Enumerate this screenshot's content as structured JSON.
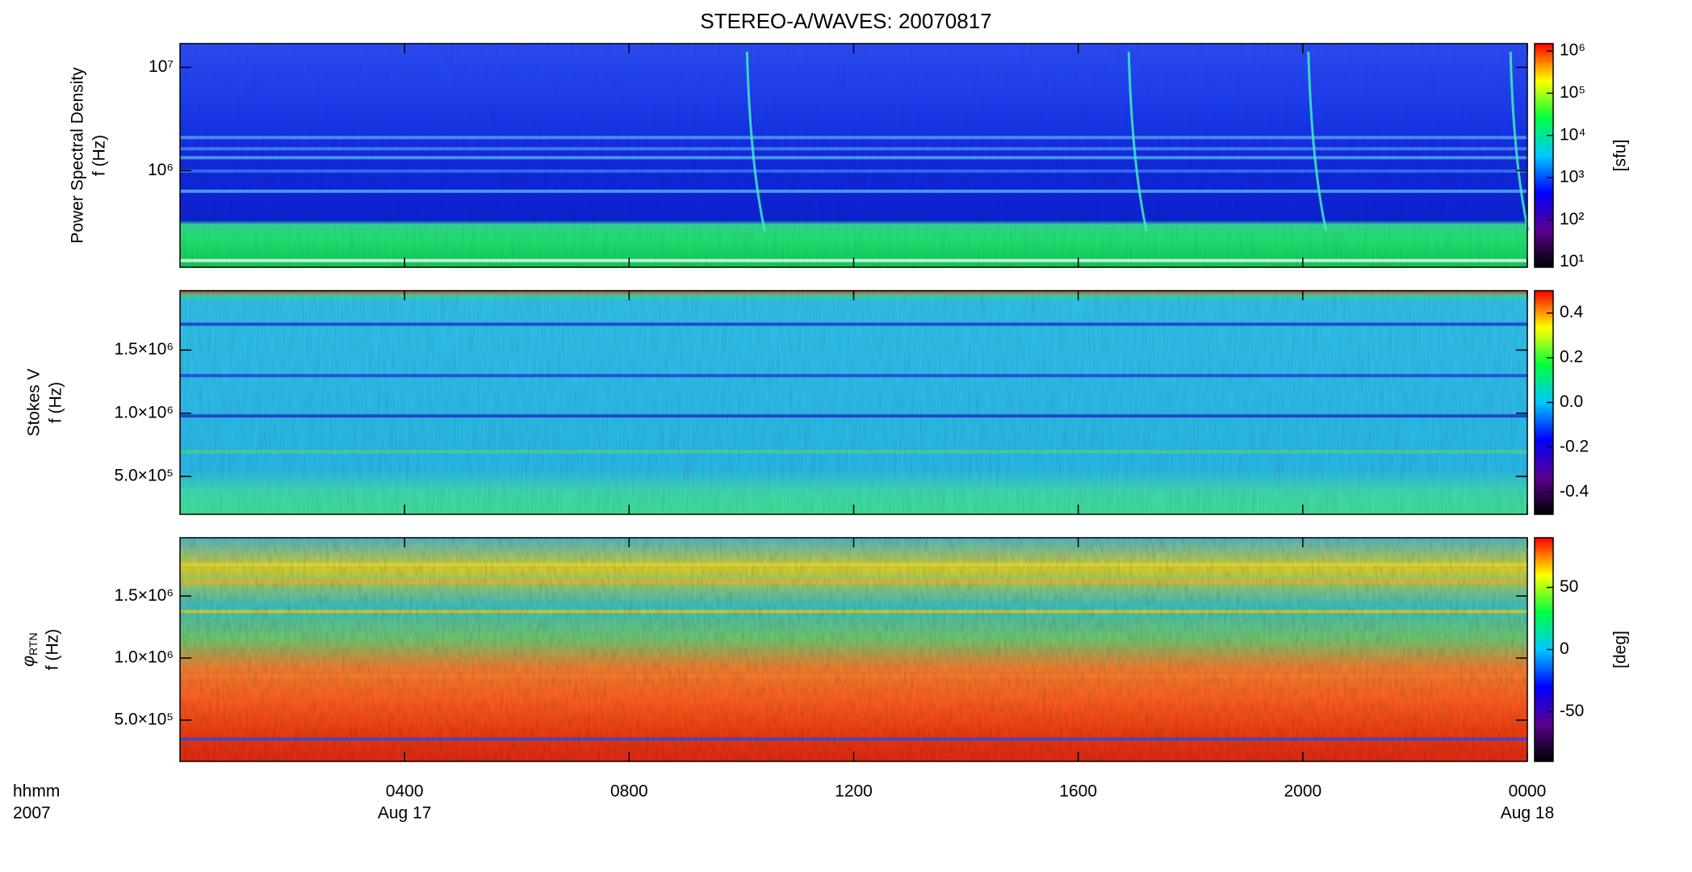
{
  "figure": {
    "title": "STEREO-A/WAVES: 20070817",
    "xlim": [
      0,
      24
    ],
    "xticks": [
      {
        "value": 4,
        "label": "0400"
      },
      {
        "value": 8,
        "label": "0800"
      },
      {
        "value": 12,
        "label": "1200"
      },
      {
        "value": 16,
        "label": "1600"
      },
      {
        "value": 20,
        "label": "2000"
      },
      {
        "value": 24,
        "label": "0000"
      }
    ],
    "date_labels": [
      {
        "value": 4,
        "label": "Aug 17"
      },
      {
        "value": 24,
        "label": "Aug 18"
      }
    ],
    "row_labels": [
      "hhmm",
      "2007"
    ]
  },
  "chart_data": [
    {
      "type": "heatmap",
      "ylabel": [
        "Power Spectral Density",
        "f (Hz)"
      ],
      "yscale": "log",
      "ylim": [
        116000,
        17000000
      ],
      "yticks": [
        {
          "value": 1000000,
          "label": "10⁶"
        },
        {
          "value": 10000000,
          "label": "10⁷"
        }
      ],
      "colorbar": {
        "scale": "log",
        "lim": [
          7.5,
          1500000
        ],
        "ticks": [
          {
            "value": 10,
            "label": "10¹"
          },
          {
            "value": 100,
            "label": "10²"
          },
          {
            "value": 1000,
            "label": "10³"
          },
          {
            "value": 10000,
            "label": "10⁴"
          },
          {
            "value": 100000,
            "label": "10⁵"
          },
          {
            "value": 1000000,
            "label": "10⁶"
          }
        ],
        "label": "[sfu]"
      },
      "colormap": [
        "#000000",
        "#5a0090",
        "#0000ff",
        "#00c8ff",
        "#00ff40",
        "#ffff00",
        "#ff0000"
      ]
    },
    {
      "type": "heatmap",
      "ylabel": [
        "Stokes V",
        "f (Hz)"
      ],
      "yscale": "linear",
      "ylim": [
        200000,
        1970000
      ],
      "yticks": [
        {
          "value": 500000,
          "label": "5.0×10⁵"
        },
        {
          "value": 1000000,
          "label": "1.0×10⁶"
        },
        {
          "value": 1500000,
          "label": "1.5×10⁶"
        }
      ],
      "colorbar": {
        "scale": "linear",
        "lim": [
          -0.5,
          0.5
        ],
        "ticks": [
          -0.4,
          -0.2,
          {
            "value": 0,
            "label": "0.0"
          },
          0.2,
          0.4
        ]
      },
      "colormap": [
        "#000000",
        "#5a0090",
        "#0000ff",
        "#00c8ff",
        "#00ff40",
        "#ffff00",
        "#ff0000"
      ]
    },
    {
      "type": "heatmap",
      "ylabel": [
        "f (Hz)"
      ],
      "ylabel_symbol": "φ",
      "ylabel_subscript": "RTN",
      "yscale": "linear",
      "ylim": [
        167000,
        1970000
      ],
      "yticks": [
        {
          "value": 500000,
          "label": "5.0×10⁵"
        },
        {
          "value": 1000000,
          "label": "1.0×10⁶"
        },
        {
          "value": 1500000,
          "label": "1.5×10⁶"
        }
      ],
      "colorbar": {
        "scale": "linear",
        "lim": [
          -90,
          90
        ],
        "ticks": [
          -50,
          0,
          50
        ],
        "label": "[deg]"
      },
      "colormap": [
        "#000000",
        "#5a0090",
        "#0000ff",
        "#00c8ff",
        "#00ff40",
        "#ffff00",
        "#ff0000"
      ]
    }
  ]
}
